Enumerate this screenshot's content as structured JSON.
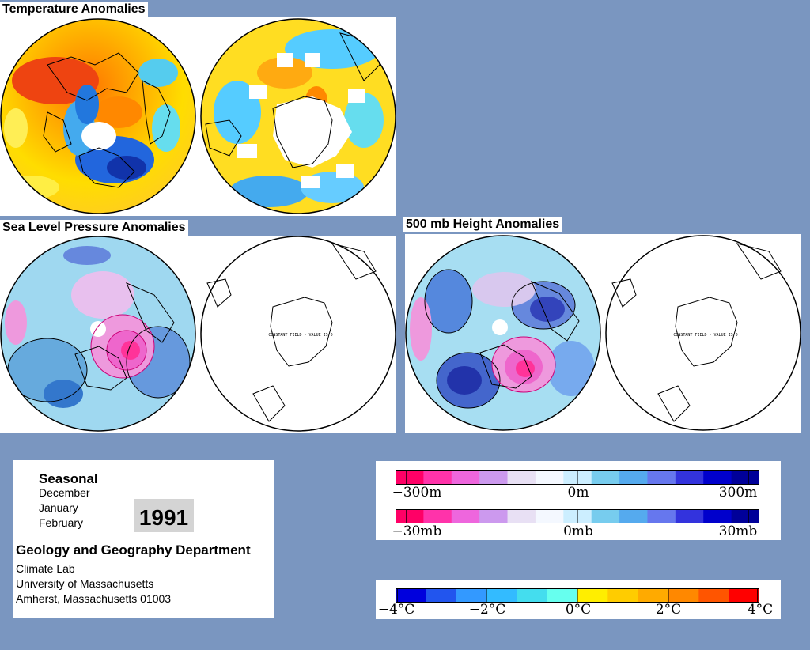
{
  "titles": {
    "temperature": "Temperature Anomalies",
    "slp": "Sea Level Pressure Anomalies",
    "height500": "500 mb Height Anomalies"
  },
  "map_annotations": {
    "slp_southern": "CONSTANT FIELD - VALUE IS 0",
    "height_southern": "CONSTANT FIELD - VALUE IS 0"
  },
  "info": {
    "seasonal": "Seasonal",
    "months": [
      "December",
      "January",
      "February"
    ],
    "year": "1991",
    "department": "Geology and Geography Department",
    "lines": [
      "Climate Lab",
      "University of Massachusetts",
      "Amherst, Massachusetts 01003"
    ]
  },
  "legends": {
    "height": {
      "ticks": [
        "−300m",
        "0m",
        "300m"
      ],
      "range": [
        -300,
        300
      ],
      "unit": "m"
    },
    "slp": {
      "ticks": [
        "−30mb",
        "0mb",
        "30mb"
      ],
      "range": [
        -30,
        30
      ],
      "unit": "mb"
    },
    "temp": {
      "ticks": [
        "−4°C",
        "−2°C",
        "0°C",
        "2°C",
        "4°C"
      ],
      "range": [
        -4,
        4
      ],
      "unit": "°C"
    }
  },
  "colors": {
    "background": "#7a96c0",
    "pressure_scale": [
      "#ff0066",
      "#ff33aa",
      "#ee66dd",
      "#cc99ee",
      "#e8e0f4",
      "#f4f8ff",
      "#cceeff",
      "#77ccee",
      "#55aaee",
      "#6677ee",
      "#3333dd",
      "#0000cc",
      "#000099"
    ],
    "temp_scale": [
      "#0000dd",
      "#2255ee",
      "#3399ff",
      "#33bbff",
      "#44ddee",
      "#66ffee",
      "#ffee00",
      "#ffcc00",
      "#ffaa00",
      "#ff8800",
      "#ff5500",
      "#ff0000"
    ]
  }
}
